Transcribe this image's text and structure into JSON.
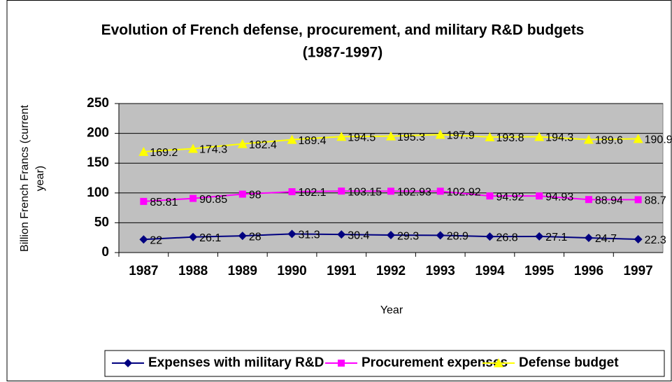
{
  "chart_data": {
    "type": "line",
    "title": [
      "Evolution of French defense, procurement, and military R&D budgets",
      "(1987-1997)"
    ],
    "xlabel": "Year",
    "ylabel": [
      "Billion French Francs (current",
      "year)"
    ],
    "categories": [
      "1987",
      "1988",
      "1989",
      "1990",
      "1991",
      "1992",
      "1993",
      "1994",
      "1995",
      "1996",
      "1997"
    ],
    "series": [
      {
        "name": "Expenses with military R&D",
        "color": "#000080",
        "marker": "diamond",
        "values": [
          22,
          26.1,
          28,
          31.3,
          30.4,
          29.3,
          28.9,
          26.8,
          27.1,
          24.7,
          22.3
        ]
      },
      {
        "name": "Procurement expenses",
        "color": "#ff00ff",
        "marker": "square",
        "values": [
          85.81,
          90.85,
          98,
          102.1,
          103.15,
          102.93,
          102.92,
          94.92,
          94.93,
          88.94,
          88.7
        ]
      },
      {
        "name": "Defense budget",
        "color": "#ffff00",
        "marker": "triangle",
        "values": [
          169.2,
          174.3,
          182.4,
          189.4,
          194.5,
          195.3,
          197.9,
          193.8,
          194.3,
          189.6,
          190.9
        ]
      }
    ],
    "ylim": [
      0,
      250
    ],
    "yticks": [
      0,
      50,
      100,
      150,
      200,
      250
    ],
    "grid": true,
    "legend": "bottom"
  }
}
